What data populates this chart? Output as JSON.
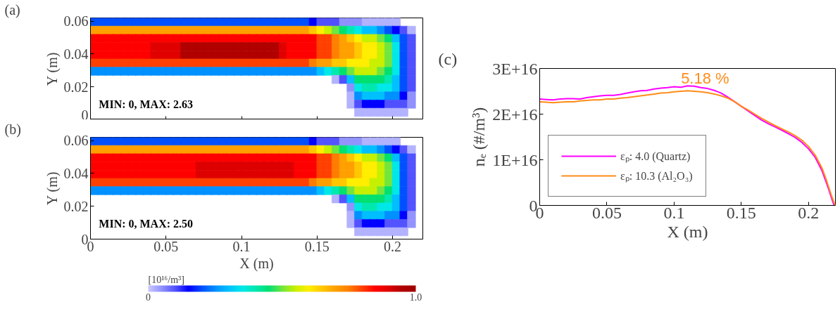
{
  "chart_data": [
    {
      "type": "scatter",
      "title": "(a)",
      "ylabel": "Y (m)",
      "tick_labels": "y",
      "marker": "square",
      "xlim": [
        0,
        0.22
      ],
      "ylim": [
        0,
        0.062
      ],
      "xticks": [
        0,
        0.05,
        0.1,
        0.15,
        0.2
      ],
      "yticks": [
        0,
        0.02,
        0.04,
        0.06
      ],
      "annotations": [
        "MIN: 0, MAX: 2.63"
      ],
      "x": [
        0.0025,
        0.0075,
        0.0125,
        0.0175,
        0.0225,
        0.0275,
        0.0325,
        0.0375,
        0.0425,
        0.0475,
        0.0525,
        0.0575,
        0.0625,
        0.0675,
        0.0725,
        0.0775,
        0.0825,
        0.0875,
        0.0925,
        0.0975,
        0.1025,
        0.1075,
        0.1125,
        0.1175,
        0.1225,
        0.1275,
        0.1325,
        0.1375,
        0.1425,
        0.1475,
        0.1525,
        0.1575,
        0.1625,
        0.1675,
        0.1725,
        0.1775,
        0.1825,
        0.1875,
        0.1925,
        0.1975,
        0.2025,
        0.0025,
        0.0075,
        0.0125,
        0.0175,
        0.0225,
        0.0275,
        0.0325,
        0.0375,
        0.0425,
        0.0475,
        0.0525,
        0.0575,
        0.0625,
        0.0675,
        0.0725,
        0.0775,
        0.0825,
        0.0875,
        0.0925,
        0.0975,
        0.1025,
        0.1075,
        0.1125,
        0.1175,
        0.1225,
        0.1275,
        0.1325,
        0.1375,
        0.1425,
        0.1475,
        0.1525,
        0.1575,
        0.1625,
        0.1675,
        0.1725,
        0.1775,
        0.1825,
        0.1875,
        0.1925,
        0.1975,
        0.2025,
        0.2075,
        0.2125,
        0.0025,
        0.0075,
        0.0125,
        0.0175,
        0.0225,
        0.0275,
        0.0325,
        0.0375,
        0.0425,
        0.0475,
        0.0525,
        0.0575,
        0.0625,
        0.0675,
        0.0725,
        0.0775,
        0.0825,
        0.0875,
        0.0925,
        0.0975,
        0.1025,
        0.1075,
        0.1125,
        0.1175,
        0.1225,
        0.1275,
        0.1325,
        0.1375,
        0.1425,
        0.1475,
        0.1525,
        0.1575,
        0.1625,
        0.1675,
        0.1725,
        0.1775,
        0.1825,
        0.1875,
        0.1925,
        0.1975,
        0.2025,
        0.2075,
        0.2125,
        0.0025,
        0.0075,
        0.0125,
        0.0175,
        0.0225,
        0.0275,
        0.0325,
        0.0375,
        0.0425,
        0.0475,
        0.0525,
        0.0575,
        0.0625,
        0.0675,
        0.0725,
        0.0775,
        0.0825,
        0.0875,
        0.0925,
        0.0975,
        0.1025,
        0.1075,
        0.1125,
        0.1175,
        0.1225,
        0.1275,
        0.1325,
        0.1375,
        0.1425,
        0.1475,
        0.1525,
        0.1575,
        0.1625,
        0.1675,
        0.1725,
        0.1775,
        0.1825,
        0.1875,
        0.1925,
        0.1975,
        0.2025,
        0.2075,
        0.2125,
        0.0025,
        0.0075,
        0.0125,
        0.0175,
        0.0225,
        0.0275,
        0.0325,
        0.0375,
        0.0425,
        0.0475,
        0.0525,
        0.0575,
        0.0625,
        0.0675,
        0.0725,
        0.0775,
        0.0825,
        0.0875,
        0.0925,
        0.0975,
        0.1025,
        0.1075,
        0.1125,
        0.1175,
        0.1225,
        0.1275,
        0.1325,
        0.1375,
        0.1425,
        0.1475,
        0.1525,
        0.1575,
        0.1625,
        0.1675,
        0.1725,
        0.1775,
        0.1825,
        0.1875,
        0.1925,
        0.1975,
        0.2025,
        0.2075,
        0.2125,
        0.0025,
        0.0075,
        0.0125,
        0.0175,
        0.0225,
        0.0275,
        0.0325,
        0.0375,
        0.0425,
        0.0475,
        0.0525,
        0.0575,
        0.0625,
        0.0675,
        0.0725,
        0.0775,
        0.0825,
        0.0875,
        0.0925,
        0.0975,
        0.1025,
        0.1075,
        0.1125,
        0.1175,
        0.1225,
        0.1275,
        0.1325,
        0.1375,
        0.1425,
        0.1475,
        0.1525,
        0.1575,
        0.1625,
        0.1675,
        0.1725,
        0.1775,
        0.1825,
        0.1875,
        0.1925,
        0.1975,
        0.2025,
        0.2075,
        0.2125,
        0.0025,
        0.0075,
        0.0125,
        0.0175,
        0.0225,
        0.0275,
        0.0325,
        0.0375,
        0.0425,
        0.0475,
        0.0525,
        0.0575,
        0.0625,
        0.0675,
        0.0725,
        0.0775,
        0.0825,
        0.0875,
        0.0925,
        0.0975,
        0.1025,
        0.1075,
        0.1125,
        0.1175,
        0.1225,
        0.1275,
        0.1325,
        0.1375,
        0.1425,
        0.1475,
        0.1525,
        0.1575,
        0.1625,
        0.1675,
        0.1725,
        0.1775,
        0.1825,
        0.1875,
        0.1925,
        0.1975,
        0.2025,
        0.2075,
        0.2125,
        0.1625,
        0.1675,
        0.1725,
        0.1775,
        0.1825,
        0.1875,
        0.1925,
        0.1975,
        0.2025,
        0.2075,
        0.2125,
        0.1725,
        0.1775,
        0.1825,
        0.1875,
        0.1925,
        0.1975,
        0.2025,
        0.2075,
        0.2125,
        0.1725,
        0.1775,
        0.1825,
        0.1875,
        0.1925,
        0.1975,
        0.2025,
        0.2075,
        0.2125,
        0.1725,
        0.1775,
        0.1825,
        0.1875,
        0.1925,
        0.1975,
        0.2025,
        0.2075,
        0.2125,
        0.1775,
        0.1825,
        0.1875,
        0.1925,
        0.1975,
        0.2025,
        0.2075
      ],
      "values": [
        0.0595,
        0.0595,
        0.0595,
        0.0595,
        0.0595,
        0.0595,
        0.0595,
        0.0595,
        0.0595,
        0.0595,
        0.0595,
        0.0595,
        0.0595,
        0.0595,
        0.0595,
        0.0595,
        0.0595,
        0.0595,
        0.0595,
        0.0595,
        0.0595,
        0.0595,
        0.0595,
        0.0595,
        0.0595,
        0.0595,
        0.0595,
        0.0595,
        0.0595,
        0.0595,
        0.0595,
        0.0595,
        0.0595,
        0.0595,
        0.0595,
        0.0595,
        0.0595,
        0.0595,
        0.0595,
        0.0595,
        0.0595,
        0.0545,
        0.0545,
        0.0545,
        0.0545,
        0.0545,
        0.0545,
        0.0545,
        0.0545,
        0.0545,
        0.0545,
        0.0545,
        0.0545,
        0.0545,
        0.0545,
        0.0545,
        0.0545,
        0.0545,
        0.0545,
        0.0545,
        0.0545,
        0.0545,
        0.0545,
        0.0545,
        0.0545,
        0.0545,
        0.0545,
        0.0545,
        0.0545,
        0.0545,
        0.0545,
        0.0545,
        0.0545,
        0.0545,
        0.0545,
        0.0545,
        0.0545,
        0.0545,
        0.0545,
        0.0545,
        0.0545,
        0.0545,
        0.0545,
        0.0545,
        0.0495,
        0.0495,
        0.0495,
        0.0495,
        0.0495,
        0.0495,
        0.0495,
        0.0495,
        0.0495,
        0.0495,
        0.0495,
        0.0495,
        0.0495,
        0.0495,
        0.0495,
        0.0495,
        0.0495,
        0.0495,
        0.0495,
        0.0495,
        0.0495,
        0.0495,
        0.0495,
        0.0495,
        0.0495,
        0.0495,
        0.0495,
        0.0495,
        0.0495,
        0.0495,
        0.0495,
        0.0495,
        0.0495,
        0.0495,
        0.0495,
        0.0495,
        0.0495,
        0.0495,
        0.0495,
        0.0495,
        0.0495,
        0.0495,
        0.0495,
        0.0445,
        0.0445,
        0.0445,
        0.0445,
        0.0445,
        0.0445,
        0.0445,
        0.0445,
        0.0445,
        0.0445,
        0.0445,
        0.0445,
        0.0445,
        0.0445,
        0.0445,
        0.0445,
        0.0445,
        0.0445,
        0.0445,
        0.0445,
        0.0445,
        0.0445,
        0.0445,
        0.0445,
        0.0445,
        0.0445,
        0.0445,
        0.0445,
        0.0445,
        0.0445,
        0.0445,
        0.0445,
        0.0445,
        0.0445,
        0.0445,
        0.0445,
        0.0445,
        0.0445,
        0.0445,
        0.0445,
        0.0445,
        0.0445,
        0.0445,
        0.0395,
        0.0395,
        0.0395,
        0.0395,
        0.0395,
        0.0395,
        0.0395,
        0.0395,
        0.0395,
        0.0395,
        0.0395,
        0.0395,
        0.0395,
        0.0395,
        0.0395,
        0.0395,
        0.0395,
        0.0395,
        0.0395,
        0.0395,
        0.0395,
        0.0395,
        0.0395,
        0.0395,
        0.0395,
        0.0395,
        0.0395,
        0.0395,
        0.0395,
        0.0395,
        0.0395,
        0.0395,
        0.0395,
        0.0395,
        0.0395,
        0.0395,
        0.0395,
        0.0395,
        0.0395,
        0.0395,
        0.0395,
        0.0395,
        0.0395,
        0.0345,
        0.0345,
        0.0345,
        0.0345,
        0.0345,
        0.0345,
        0.0345,
        0.0345,
        0.0345,
        0.0345,
        0.0345,
        0.0345,
        0.0345,
        0.0345,
        0.0345,
        0.0345,
        0.0345,
        0.0345,
        0.0345,
        0.0345,
        0.0345,
        0.0345,
        0.0345,
        0.0345,
        0.0345,
        0.0345,
        0.0345,
        0.0345,
        0.0345,
        0.0345,
        0.0345,
        0.0345,
        0.0345,
        0.0345,
        0.0345,
        0.0345,
        0.0345,
        0.0345,
        0.0345,
        0.0345,
        0.0345,
        0.0345,
        0.0345,
        0.0295,
        0.0295,
        0.0295,
        0.0295,
        0.0295,
        0.0295,
        0.0295,
        0.0295,
        0.0295,
        0.0295,
        0.0295,
        0.0295,
        0.0295,
        0.0295,
        0.0295,
        0.0295,
        0.0295,
        0.0295,
        0.0295,
        0.0295,
        0.0295,
        0.0295,
        0.0295,
        0.0295,
        0.0295,
        0.0295,
        0.0295,
        0.0295,
        0.0295,
        0.0295,
        0.0295,
        0.0295,
        0.0295,
        0.0295,
        0.0295,
        0.0295,
        0.0295,
        0.0295,
        0.0295,
        0.0295,
        0.0295,
        0.0295,
        0.0295,
        0.0245,
        0.0245,
        0.0245,
        0.0245,
        0.0245,
        0.0245,
        0.0245,
        0.0245,
        0.0245,
        0.0245,
        0.0245,
        0.0195,
        0.0195,
        0.0195,
        0.0195,
        0.0195,
        0.0195,
        0.0195,
        0.0195,
        0.0195,
        0.0145,
        0.0145,
        0.0145,
        0.0145,
        0.0145,
        0.0145,
        0.0145,
        0.0145,
        0.0145,
        0.0095,
        0.0095,
        0.0095,
        0.0095,
        0.0095,
        0.0095,
        0.0095,
        0.0095,
        0.0095,
        0.0045,
        0.0045,
        0.0045,
        0.0045,
        0.0045,
        0.0045,
        0.0045
      ],
      "colors": [
        "#0050ff",
        "#0050ff",
        "#0050ff",
        "#0050ff",
        "#0050ff",
        "#0050ff",
        "#0050ff",
        "#0050ff",
        "#0050ff",
        "#0050ff",
        "#0050ff",
        "#0050ff",
        "#0050ff",
        "#0050ff",
        "#0050ff",
        "#0050ff",
        "#0050ff",
        "#0050ff",
        "#0050ff",
        "#0050ff",
        "#0050ff",
        "#0050ff",
        "#0050ff",
        "#0050ff",
        "#0050ff",
        "#0050ff",
        "#0050ff",
        "#0050ff",
        "#0050ff",
        "#0000ff",
        "#5050ff",
        "#5050ff",
        "#5050ff",
        "#9090ff",
        "#9090ff",
        "#9090ff",
        "#b2b2ff",
        "#b2b2ff",
        "#b2b2ff",
        "#b2b2ff",
        "#b2b2ff",
        "#ffa000",
        "#ffa000",
        "#ffa000",
        "#ffa000",
        "#ffa000",
        "#ffa000",
        "#ffa000",
        "#ffa000",
        "#ffa000",
        "#ffa000",
        "#ffa000",
        "#ffa000",
        "#ffa000",
        "#ffa000",
        "#ffa000",
        "#ffa000",
        "#ffa000",
        "#ffa000",
        "#ffa000",
        "#ffa000",
        "#ffa000",
        "#ffa000",
        "#ffa000",
        "#ffa000",
        "#ffa000",
        "#ffa000",
        "#ffa000",
        "#ffa000",
        "#ffa000",
        "#ffc800",
        "#ffee00",
        "#c8f000",
        "#70e640",
        "#00e070",
        "#00e8b0",
        "#00e8e8",
        "#00c0ff",
        "#00c0ff",
        "#0090ff",
        "#0050ff",
        "#0000ff",
        "#5050ff",
        "#b2b2ff",
        "#ff0000",
        "#ff0000",
        "#ff0000",
        "#ff0000",
        "#ff0000",
        "#ff0000",
        "#ff0000",
        "#ff0000",
        "#ff0000",
        "#ff0000",
        "#ff0000",
        "#ff0000",
        "#ff0000",
        "#ff0000",
        "#ff0000",
        "#ff0000",
        "#ff0000",
        "#ff0000",
        "#ff0000",
        "#ff0000",
        "#ff0000",
        "#ff0000",
        "#ff0000",
        "#ff0000",
        "#ff0000",
        "#ff0000",
        "#ff0000",
        "#ff0000",
        "#ff0000",
        "#ff0000",
        "#ff4000",
        "#ff4000",
        "#ff8000",
        "#ffa000",
        "#ffc800",
        "#ffee00",
        "#c8f000",
        "#c8f000",
        "#70e640",
        "#00e070",
        "#00c0ff",
        "#0050ff",
        "#5050ff",
        "#ff0000",
        "#ff0000",
        "#ff0000",
        "#ff0000",
        "#ff0000",
        "#ff0000",
        "#ff0000",
        "#ff0000",
        "#e00000",
        "#e00000",
        "#e00000",
        "#e00000",
        "#b00000",
        "#b00000",
        "#b00000",
        "#b00000",
        "#b00000",
        "#b00000",
        "#b00000",
        "#b00000",
        "#b00000",
        "#b00000",
        "#b00000",
        "#b00000",
        "#b00000",
        "#e00000",
        "#ff0000",
        "#ff0000",
        "#ff0000",
        "#ff0000",
        "#ff4000",
        "#ff4000",
        "#ff8000",
        "#ffa000",
        "#ffa000",
        "#ffc800",
        "#ffee00",
        "#ffee00",
        "#c8f000",
        "#70e640",
        "#00e8e8",
        "#0050ff",
        "#5050ff",
        "#ff0000",
        "#ff0000",
        "#ff0000",
        "#ff0000",
        "#ff0000",
        "#ff0000",
        "#ff0000",
        "#ff0000",
        "#e00000",
        "#e00000",
        "#e00000",
        "#e00000",
        "#b00000",
        "#b00000",
        "#b00000",
        "#b00000",
        "#b00000",
        "#b00000",
        "#b00000",
        "#b00000",
        "#b00000",
        "#b00000",
        "#b00000",
        "#b00000",
        "#b00000",
        "#e00000",
        "#ff0000",
        "#ff0000",
        "#ff0000",
        "#ff0000",
        "#ff4000",
        "#ff4000",
        "#ff8000",
        "#ffa000",
        "#ffa000",
        "#ffc800",
        "#ffee00",
        "#ffee00",
        "#c8f000",
        "#70e640",
        "#00e8e8",
        "#0050ff",
        "#5050ff",
        "#ff4000",
        "#ff4000",
        "#ff4000",
        "#ff4000",
        "#ff4000",
        "#ff4000",
        "#ff4000",
        "#ff4000",
        "#ff4000",
        "#ff4000",
        "#ff4000",
        "#ff4000",
        "#ff4000",
        "#ff4000",
        "#ff4000",
        "#ff4000",
        "#ff4000",
        "#ff4000",
        "#ff4000",
        "#ff4000",
        "#ff4000",
        "#ff4000",
        "#ff4000",
        "#ff4000",
        "#ff4000",
        "#ff4000",
        "#ff4000",
        "#ff4000",
        "#ff4000",
        "#ff8000",
        "#ffa000",
        "#ffa000",
        "#ffc800",
        "#ffc800",
        "#ffee00",
        "#ffee00",
        "#ffee00",
        "#c8f000",
        "#c8f000",
        "#70e640",
        "#00e8e8",
        "#0050ff",
        "#5050ff",
        "#0090ff",
        "#0090ff",
        "#0090ff",
        "#0090ff",
        "#0090ff",
        "#0090ff",
        "#0090ff",
        "#0090ff",
        "#0090ff",
        "#0090ff",
        "#0090ff",
        "#0090ff",
        "#0090ff",
        "#0090ff",
        "#0090ff",
        "#0090ff",
        "#0090ff",
        "#0090ff",
        "#0090ff",
        "#0090ff",
        "#0090ff",
        "#0090ff",
        "#0090ff",
        "#0090ff",
        "#0090ff",
        "#0090ff",
        "#0090ff",
        "#0090ff",
        "#0090ff",
        "#0090ff",
        "#00c0ff",
        "#00e8e8",
        "#00e8b0",
        "#00e070",
        "#70e640",
        "#c8f000",
        "#c8f000",
        "#c8f000",
        "#70e640",
        "#00e070",
        "#00e8e8",
        "#0050ff",
        "#5050ff",
        "#b2b2ff",
        "#5050ff",
        "#00c0ff",
        "#00e070",
        "#00e070",
        "#00e070",
        "#00e070",
        "#00e8b0",
        "#00c0ff",
        "#0050ff",
        "#5050ff",
        "#9090ff",
        "#00e8e8",
        "#00e8b0",
        "#00e8b0",
        "#00e8e8",
        "#00e8e8",
        "#00c0ff",
        "#0050ff",
        "#5050ff",
        "#b2b2ff",
        "#0090ff",
        "#00c0ff",
        "#00c0ff",
        "#00c0ff",
        "#0090ff",
        "#0090ff",
        "#0000ff",
        "#9090ff",
        "#b2b2ff",
        "#5050ff",
        "#0000ff",
        "#0000ff",
        "#0000ff",
        "#5050ff",
        "#5050ff",
        "#5050ff",
        "#9090ff",
        "#b2b2ff",
        "#b2b2ff",
        "#b2b2ff",
        "#b2b2ff",
        "#b2b2ff",
        "#b2b2ff",
        "#b2b2ff"
      ]
    },
    {
      "type": "scatter",
      "title": "(b)",
      "xlabel": "X (m)",
      "ylabel": "Y (m)",
      "marker": "square",
      "xlim": [
        0,
        0.22
      ],
      "ylim": [
        0,
        0.062
      ],
      "xticks": [
        0,
        0.05,
        0.1,
        0.15,
        0.2
      ],
      "yticks": [
        0,
        0.02,
        0.04,
        0.06
      ],
      "clim": [
        0,
        1.0
      ],
      "cticks": [
        0,
        {
          "value": 1.0,
          "label": "1.0"
        }
      ],
      "clabel": "[10¹⁶/m³]",
      "annotations": [
        "MIN: 0, MAX: 2.50"
      ],
      "x": [
        0.0025,
        0.0075,
        0.0125,
        0.0175,
        0.0225,
        0.0275,
        0.0325,
        0.0375,
        0.0425,
        0.0475,
        0.0525,
        0.0575,
        0.0625,
        0.0675,
        0.0725,
        0.0775,
        0.0825,
        0.0875,
        0.0925,
        0.0975,
        0.1025,
        0.1075,
        0.1125,
        0.1175,
        0.1225,
        0.1275,
        0.1325,
        0.1375,
        0.1425,
        0.1475,
        0.1525,
        0.1575,
        0.1625,
        0.1675,
        0.1725,
        0.1775,
        0.1825,
        0.1875,
        0.1925,
        0.1975,
        0.2025,
        0.0025,
        0.0075,
        0.0125,
        0.0175,
        0.0225,
        0.0275,
        0.0325,
        0.0375,
        0.0425,
        0.0475,
        0.0525,
        0.0575,
        0.0625,
        0.0675,
        0.0725,
        0.0775,
        0.0825,
        0.0875,
        0.0925,
        0.0975,
        0.1025,
        0.1075,
        0.1125,
        0.1175,
        0.1225,
        0.1275,
        0.1325,
        0.1375,
        0.1425,
        0.1475,
        0.1525,
        0.1575,
        0.1625,
        0.1675,
        0.1725,
        0.1775,
        0.1825,
        0.1875,
        0.1925,
        0.1975,
        0.2025,
        0.2075,
        0.2125,
        0.0025,
        0.0075,
        0.0125,
        0.0175,
        0.0225,
        0.0275,
        0.0325,
        0.0375,
        0.0425,
        0.0475,
        0.0525,
        0.0575,
        0.0625,
        0.0675,
        0.0725,
        0.0775,
        0.0825,
        0.0875,
        0.0925,
        0.0975,
        0.1025,
        0.1075,
        0.1125,
        0.1175,
        0.1225,
        0.1275,
        0.1325,
        0.1375,
        0.1425,
        0.1475,
        0.1525,
        0.1575,
        0.1625,
        0.1675,
        0.1725,
        0.1775,
        0.1825,
        0.1875,
        0.1925,
        0.1975,
        0.2025,
        0.2075,
        0.2125,
        0.0025,
        0.0075,
        0.0125,
        0.0175,
        0.0225,
        0.0275,
        0.0325,
        0.0375,
        0.0425,
        0.0475,
        0.0525,
        0.0575,
        0.0625,
        0.0675,
        0.0725,
        0.0775,
        0.0825,
        0.0875,
        0.0925,
        0.0975,
        0.1025,
        0.1075,
        0.1125,
        0.1175,
        0.1225,
        0.1275,
        0.1325,
        0.1375,
        0.1425,
        0.1475,
        0.1525,
        0.1575,
        0.1625,
        0.1675,
        0.1725,
        0.1775,
        0.1825,
        0.1875,
        0.1925,
        0.1975,
        0.2025,
        0.2075,
        0.2125,
        0.0025,
        0.0075,
        0.0125,
        0.0175,
        0.0225,
        0.0275,
        0.0325,
        0.0375,
        0.0425,
        0.0475,
        0.0525,
        0.0575,
        0.0625,
        0.0675,
        0.0725,
        0.0775,
        0.0825,
        0.0875,
        0.0925,
        0.0975,
        0.1025,
        0.1075,
        0.1125,
        0.1175,
        0.1225,
        0.1275,
        0.1325,
        0.1375,
        0.1425,
        0.1475,
        0.1525,
        0.1575,
        0.1625,
        0.1675,
        0.1725,
        0.1775,
        0.1825,
        0.1875,
        0.1925,
        0.1975,
        0.2025,
        0.2075,
        0.2125,
        0.0025,
        0.0075,
        0.0125,
        0.0175,
        0.0225,
        0.0275,
        0.0325,
        0.0375,
        0.0425,
        0.0475,
        0.0525,
        0.0575,
        0.0625,
        0.0675,
        0.0725,
        0.0775,
        0.0825,
        0.0875,
        0.0925,
        0.0975,
        0.1025,
        0.1075,
        0.1125,
        0.1175,
        0.1225,
        0.1275,
        0.1325,
        0.1375,
        0.1425,
        0.1475,
        0.1525,
        0.1575,
        0.1625,
        0.1675,
        0.1725,
        0.1775,
        0.1825,
        0.1875,
        0.1925,
        0.1975,
        0.2025,
        0.2075,
        0.2125,
        0.0025,
        0.0075,
        0.0125,
        0.0175,
        0.0225,
        0.0275,
        0.0325,
        0.0375,
        0.0425,
        0.0475,
        0.0525,
        0.0575,
        0.0625,
        0.0675,
        0.0725,
        0.0775,
        0.0825,
        0.0875,
        0.0925,
        0.0975,
        0.1025,
        0.1075,
        0.1125,
        0.1175,
        0.1225,
        0.1275,
        0.1325,
        0.1375,
        0.1425,
        0.1475,
        0.1525,
        0.1575,
        0.1625,
        0.1675,
        0.1725,
        0.1775,
        0.1825,
        0.1875,
        0.1925,
        0.1975,
        0.2025,
        0.2075,
        0.2125,
        0.1625,
        0.1675,
        0.1725,
        0.1775,
        0.1825,
        0.1875,
        0.1925,
        0.1975,
        0.2025,
        0.2075,
        0.2125,
        0.1725,
        0.1775,
        0.1825,
        0.1875,
        0.1925,
        0.1975,
        0.2025,
        0.2075,
        0.2125,
        0.1725,
        0.1775,
        0.1825,
        0.1875,
        0.1925,
        0.1975,
        0.2025,
        0.2075,
        0.2125,
        0.1725,
        0.1775,
        0.1825,
        0.1875,
        0.1925,
        0.1975,
        0.2025,
        0.2075,
        0.2125,
        0.1775,
        0.1825,
        0.1875,
        0.1925,
        0.1975,
        0.2025,
        0.2075
      ],
      "values": [
        0.0595,
        0.0595,
        0.0595,
        0.0595,
        0.0595,
        0.0595,
        0.0595,
        0.0595,
        0.0595,
        0.0595,
        0.0595,
        0.0595,
        0.0595,
        0.0595,
        0.0595,
        0.0595,
        0.0595,
        0.0595,
        0.0595,
        0.0595,
        0.0595,
        0.0595,
        0.0595,
        0.0595,
        0.0595,
        0.0595,
        0.0595,
        0.0595,
        0.0595,
        0.0595,
        0.0595,
        0.0595,
        0.0595,
        0.0595,
        0.0595,
        0.0595,
        0.0595,
        0.0595,
        0.0595,
        0.0595,
        0.0595,
        0.0545,
        0.0545,
        0.0545,
        0.0545,
        0.0545,
        0.0545,
        0.0545,
        0.0545,
        0.0545,
        0.0545,
        0.0545,
        0.0545,
        0.0545,
        0.0545,
        0.0545,
        0.0545,
        0.0545,
        0.0545,
        0.0545,
        0.0545,
        0.0545,
        0.0545,
        0.0545,
        0.0545,
        0.0545,
        0.0545,
        0.0545,
        0.0545,
        0.0545,
        0.0545,
        0.0545,
        0.0545,
        0.0545,
        0.0545,
        0.0545,
        0.0545,
        0.0545,
        0.0545,
        0.0545,
        0.0545,
        0.0545,
        0.0545,
        0.0545,
        0.0495,
        0.0495,
        0.0495,
        0.0495,
        0.0495,
        0.0495,
        0.0495,
        0.0495,
        0.0495,
        0.0495,
        0.0495,
        0.0495,
        0.0495,
        0.0495,
        0.0495,
        0.0495,
        0.0495,
        0.0495,
        0.0495,
        0.0495,
        0.0495,
        0.0495,
        0.0495,
        0.0495,
        0.0495,
        0.0495,
        0.0495,
        0.0495,
        0.0495,
        0.0495,
        0.0495,
        0.0495,
        0.0495,
        0.0495,
        0.0495,
        0.0495,
        0.0495,
        0.0495,
        0.0495,
        0.0495,
        0.0495,
        0.0495,
        0.0495,
        0.0445,
        0.0445,
        0.0445,
        0.0445,
        0.0445,
        0.0445,
        0.0445,
        0.0445,
        0.0445,
        0.0445,
        0.0445,
        0.0445,
        0.0445,
        0.0445,
        0.0445,
        0.0445,
        0.0445,
        0.0445,
        0.0445,
        0.0445,
        0.0445,
        0.0445,
        0.0445,
        0.0445,
        0.0445,
        0.0445,
        0.0445,
        0.0445,
        0.0445,
        0.0445,
        0.0445,
        0.0445,
        0.0445,
        0.0445,
        0.0445,
        0.0445,
        0.0445,
        0.0445,
        0.0445,
        0.0445,
        0.0445,
        0.0445,
        0.0445,
        0.0395,
        0.0395,
        0.0395,
        0.0395,
        0.0395,
        0.0395,
        0.0395,
        0.0395,
        0.0395,
        0.0395,
        0.0395,
        0.0395,
        0.0395,
        0.0395,
        0.0395,
        0.0395,
        0.0395,
        0.0395,
        0.0395,
        0.0395,
        0.0395,
        0.0395,
        0.0395,
        0.0395,
        0.0395,
        0.0395,
        0.0395,
        0.0395,
        0.0395,
        0.0395,
        0.0395,
        0.0395,
        0.0395,
        0.0395,
        0.0395,
        0.0395,
        0.0395,
        0.0395,
        0.0395,
        0.0395,
        0.0395,
        0.0395,
        0.0395,
        0.0345,
        0.0345,
        0.0345,
        0.0345,
        0.0345,
        0.0345,
        0.0345,
        0.0345,
        0.0345,
        0.0345,
        0.0345,
        0.0345,
        0.0345,
        0.0345,
        0.0345,
        0.0345,
        0.0345,
        0.0345,
        0.0345,
        0.0345,
        0.0345,
        0.0345,
        0.0345,
        0.0345,
        0.0345,
        0.0345,
        0.0345,
        0.0345,
        0.0345,
        0.0345,
        0.0345,
        0.0345,
        0.0345,
        0.0345,
        0.0345,
        0.0345,
        0.0345,
        0.0345,
        0.0345,
        0.0345,
        0.0345,
        0.0345,
        0.0345,
        0.0295,
        0.0295,
        0.0295,
        0.0295,
        0.0295,
        0.0295,
        0.0295,
        0.0295,
        0.0295,
        0.0295,
        0.0295,
        0.0295,
        0.0295,
        0.0295,
        0.0295,
        0.0295,
        0.0295,
        0.0295,
        0.0295,
        0.0295,
        0.0295,
        0.0295,
        0.0295,
        0.0295,
        0.0295,
        0.0295,
        0.0295,
        0.0295,
        0.0295,
        0.0295,
        0.0295,
        0.0295,
        0.0295,
        0.0295,
        0.0295,
        0.0295,
        0.0295,
        0.0295,
        0.0295,
        0.0295,
        0.0295,
        0.0295,
        0.0295,
        0.0245,
        0.0245,
        0.0245,
        0.0245,
        0.0245,
        0.0245,
        0.0245,
        0.0245,
        0.0245,
        0.0245,
        0.0245,
        0.0195,
        0.0195,
        0.0195,
        0.0195,
        0.0195,
        0.0195,
        0.0195,
        0.0195,
        0.0195,
        0.0145,
        0.0145,
        0.0145,
        0.0145,
        0.0145,
        0.0145,
        0.0145,
        0.0145,
        0.0145,
        0.0095,
        0.0095,
        0.0095,
        0.0095,
        0.0095,
        0.0095,
        0.0095,
        0.0095,
        0.0095,
        0.0045,
        0.0045,
        0.0045,
        0.0045,
        0.0045,
        0.0045,
        0.0045
      ],
      "cvalues": [
        0.2,
        0.2,
        0.2,
        0.2,
        0.2,
        0.2,
        0.2,
        0.2,
        0.2,
        0.2,
        0.2,
        0.2,
        0.2,
        0.2,
        0.2,
        0.2,
        0.2,
        0.2,
        0.2,
        0.2,
        0.2,
        0.2,
        0.2,
        0.2,
        0.2,
        0.2,
        0.2,
        0.2,
        0.2,
        0.15,
        0.1,
        0.1,
        0.1,
        0.05,
        0.05,
        0.05,
        0.02,
        0.02,
        0.02,
        0.02,
        0.02,
        0.7,
        0.7,
        0.7,
        0.7,
        0.7,
        0.7,
        0.7,
        0.7,
        0.7,
        0.7,
        0.7,
        0.7,
        0.7,
        0.7,
        0.7,
        0.7,
        0.7,
        0.7,
        0.7,
        0.7,
        0.7,
        0.7,
        0.7,
        0.7,
        0.7,
        0.7,
        0.7,
        0.7,
        0.7,
        0.65,
        0.6,
        0.55,
        0.5,
        0.45,
        0.4,
        0.35,
        0.3,
        0.3,
        0.25,
        0.2,
        0.15,
        0.1,
        0.02,
        0.85,
        0.85,
        0.85,
        0.85,
        0.85,
        0.85,
        0.85,
        0.85,
        0.85,
        0.85,
        0.85,
        0.85,
        0.85,
        0.85,
        0.85,
        0.85,
        0.85,
        0.85,
        0.85,
        0.85,
        0.85,
        0.85,
        0.85,
        0.85,
        0.85,
        0.85,
        0.85,
        0.85,
        0.85,
        0.85,
        0.8,
        0.8,
        0.75,
        0.7,
        0.65,
        0.6,
        0.55,
        0.55,
        0.5,
        0.45,
        0.3,
        0.2,
        0.1,
        0.85,
        0.85,
        0.85,
        0.85,
        0.85,
        0.85,
        0.85,
        0.85,
        0.85,
        0.85,
        0.85,
        0.85,
        0.85,
        0.85,
        0.9,
        0.9,
        0.9,
        0.9,
        0.9,
        0.9,
        0.9,
        0.9,
        0.9,
        0.9,
        0.9,
        0.9,
        0.9,
        0.85,
        0.85,
        0.85,
        0.8,
        0.8,
        0.75,
        0.7,
        0.7,
        0.65,
        0.6,
        0.6,
        0.55,
        0.5,
        0.35,
        0.2,
        0.1,
        0.85,
        0.85,
        0.85,
        0.85,
        0.85,
        0.85,
        0.85,
        0.85,
        0.85,
        0.85,
        0.85,
        0.85,
        0.85,
        0.85,
        0.9,
        0.9,
        0.9,
        0.9,
        0.9,
        0.9,
        0.9,
        0.9,
        0.9,
        0.9,
        0.9,
        0.9,
        0.9,
        0.85,
        0.85,
        0.85,
        0.8,
        0.8,
        0.75,
        0.7,
        0.7,
        0.65,
        0.6,
        0.6,
        0.55,
        0.5,
        0.35,
        0.2,
        0.1,
        0.8,
        0.8,
        0.8,
        0.8,
        0.8,
        0.8,
        0.8,
        0.8,
        0.8,
        0.8,
        0.8,
        0.8,
        0.8,
        0.8,
        0.8,
        0.8,
        0.8,
        0.8,
        0.8,
        0.8,
        0.8,
        0.8,
        0.8,
        0.8,
        0.8,
        0.8,
        0.8,
        0.8,
        0.8,
        0.75,
        0.7,
        0.7,
        0.65,
        0.65,
        0.6,
        0.6,
        0.6,
        0.55,
        0.55,
        0.5,
        0.35,
        0.2,
        0.1,
        0.25,
        0.25,
        0.25,
        0.25,
        0.25,
        0.25,
        0.25,
        0.25,
        0.25,
        0.25,
        0.25,
        0.25,
        0.25,
        0.25,
        0.25,
        0.25,
        0.25,
        0.25,
        0.25,
        0.25,
        0.25,
        0.25,
        0.25,
        0.25,
        0.25,
        0.25,
        0.25,
        0.25,
        0.25,
        0.25,
        0.3,
        0.35,
        0.4,
        0.45,
        0.5,
        0.55,
        0.55,
        0.55,
        0.5,
        0.45,
        0.35,
        0.2,
        0.1,
        0.02,
        0.1,
        0.3,
        0.45,
        0.45,
        0.45,
        0.45,
        0.4,
        0.3,
        0.2,
        0.1,
        0.05,
        0.35,
        0.4,
        0.4,
        0.35,
        0.35,
        0.3,
        0.2,
        0.1,
        0.02,
        0.25,
        0.3,
        0.3,
        0.3,
        0.25,
        0.25,
        0.15,
        0.05,
        0.02,
        0.1,
        0.15,
        0.15,
        0.15,
        0.1,
        0.1,
        0.1,
        0.05,
        0.02,
        0.02,
        0.02,
        0.02,
        0.02,
        0.02,
        0.02
      ]
    },
    {
      "type": "line",
      "title": "(c)",
      "xlabel": "X (m)",
      "ylabel": "nₑ (#/m³)",
      "xlim": [
        0,
        0.22
      ],
      "ylim": [
        0,
        3e+16
      ],
      "xticks": [
        0,
        0.05,
        0.1,
        0.15,
        0.2
      ],
      "yticks": [
        0,
        {
          "value": 1e+16,
          "label": "1E+16"
        },
        {
          "value": 2e+16,
          "label": "2E+16"
        },
        {
          "value": 3e+16,
          "label": "3E+16"
        }
      ],
      "legend": "bottom left",
      "annotations": [
        {
          "text": "5.18 %",
          "x": 0.103,
          "y": 2.6e+16
        }
      ],
      "series": [
        {
          "name": "εₚ: 4.0 (Quartz)",
          "color": "#ff00ff",
          "x": [
            0,
            0.005,
            0.01,
            0.015,
            0.02,
            0.025,
            0.03,
            0.035,
            0.04,
            0.045,
            0.05,
            0.055,
            0.06,
            0.065,
            0.07,
            0.075,
            0.08,
            0.085,
            0.09,
            0.095,
            0.1,
            0.105,
            0.11,
            0.115,
            0.12,
            0.125,
            0.13,
            0.135,
            0.14,
            0.145,
            0.15,
            0.155,
            0.16,
            0.165,
            0.17,
            0.175,
            0.18,
            0.185,
            0.19,
            0.195,
            0.2,
            0.205,
            0.21,
            0.213,
            0.215,
            0.217,
            0.219
          ],
          "values": [
            2.33e+16,
            2.32e+16,
            2.31e+16,
            2.33e+16,
            2.34e+16,
            2.34e+16,
            2.33e+16,
            2.36e+16,
            2.38e+16,
            2.4e+16,
            2.41e+16,
            2.41e+16,
            2.43e+16,
            2.46e+16,
            2.49e+16,
            2.51e+16,
            2.52e+16,
            2.55e+16,
            2.57e+16,
            2.58e+16,
            2.6e+16,
            2.59e+16,
            2.62e+16,
            2.61e+16,
            2.58e+16,
            2.56e+16,
            2.52e+16,
            2.46e+16,
            2.37e+16,
            2.27e+16,
            2.17e+16,
            2.07e+16,
            1.97e+16,
            1.87e+16,
            1.79e+16,
            1.72e+16,
            1.65e+16,
            1.57e+16,
            1.49e+16,
            1.38e+16,
            1.24e+16,
            1.05e+16,
            7600000000000000.0,
            5200000000000000.0,
            3500000000000000.0,
            1700000000000000.0,
            0
          ]
        },
        {
          "name": "εₚ: 10.3 (Al₂O₃)",
          "color": "#ff8c19",
          "x": [
            0,
            0.005,
            0.01,
            0.015,
            0.02,
            0.025,
            0.03,
            0.035,
            0.04,
            0.045,
            0.05,
            0.055,
            0.06,
            0.065,
            0.07,
            0.075,
            0.08,
            0.085,
            0.09,
            0.095,
            0.1,
            0.105,
            0.11,
            0.115,
            0.12,
            0.125,
            0.13,
            0.135,
            0.14,
            0.145,
            0.15,
            0.155,
            0.16,
            0.165,
            0.17,
            0.175,
            0.18,
            0.185,
            0.19,
            0.195,
            0.2,
            0.205,
            0.21,
            0.213,
            0.215,
            0.217,
            0.219,
            0.22
          ],
          "values": [
            2.27e+16,
            2.26e+16,
            2.25e+16,
            2.26e+16,
            2.27e+16,
            2.27e+16,
            2.29e+16,
            2.3e+16,
            2.31e+16,
            2.31e+16,
            2.33e+16,
            2.33e+16,
            2.35e+16,
            2.36e+16,
            2.38e+16,
            2.4e+16,
            2.42e+16,
            2.44e+16,
            2.46e+16,
            2.47e+16,
            2.49e+16,
            2.5e+16,
            2.51e+16,
            2.5e+16,
            2.49e+16,
            2.47e+16,
            2.44e+16,
            2.4e+16,
            2.35e+16,
            2.27e+16,
            2.17e+16,
            2.09e+16,
            2e+16,
            1.91e+16,
            1.83e+16,
            1.75e+16,
            1.68e+16,
            1.61e+16,
            1.53e+16,
            1.43e+16,
            1.29e+16,
            1.1e+16,
            8200000000000000.0,
            5800000000000000.0,
            4000000000000000.0,
            2200000000000000.0,
            600000000000000.0,
            0
          ]
        }
      ]
    }
  ]
}
